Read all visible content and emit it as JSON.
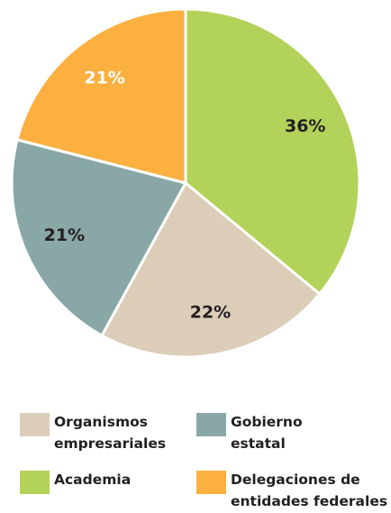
{
  "chart_data": {
    "type": "pie",
    "categories": [
      "Academia",
      "Organismos empresariales",
      "Gobierno estatal",
      "Delegaciones de entidades federales"
    ],
    "values": [
      36,
      22,
      21,
      21
    ],
    "value_labels": [
      "36%",
      "22%",
      "21%",
      "21%"
    ],
    "colors": [
      "#b3d25a",
      "#dbcdb8",
      "#89a7a7",
      "#fbb040"
    ]
  }
}
